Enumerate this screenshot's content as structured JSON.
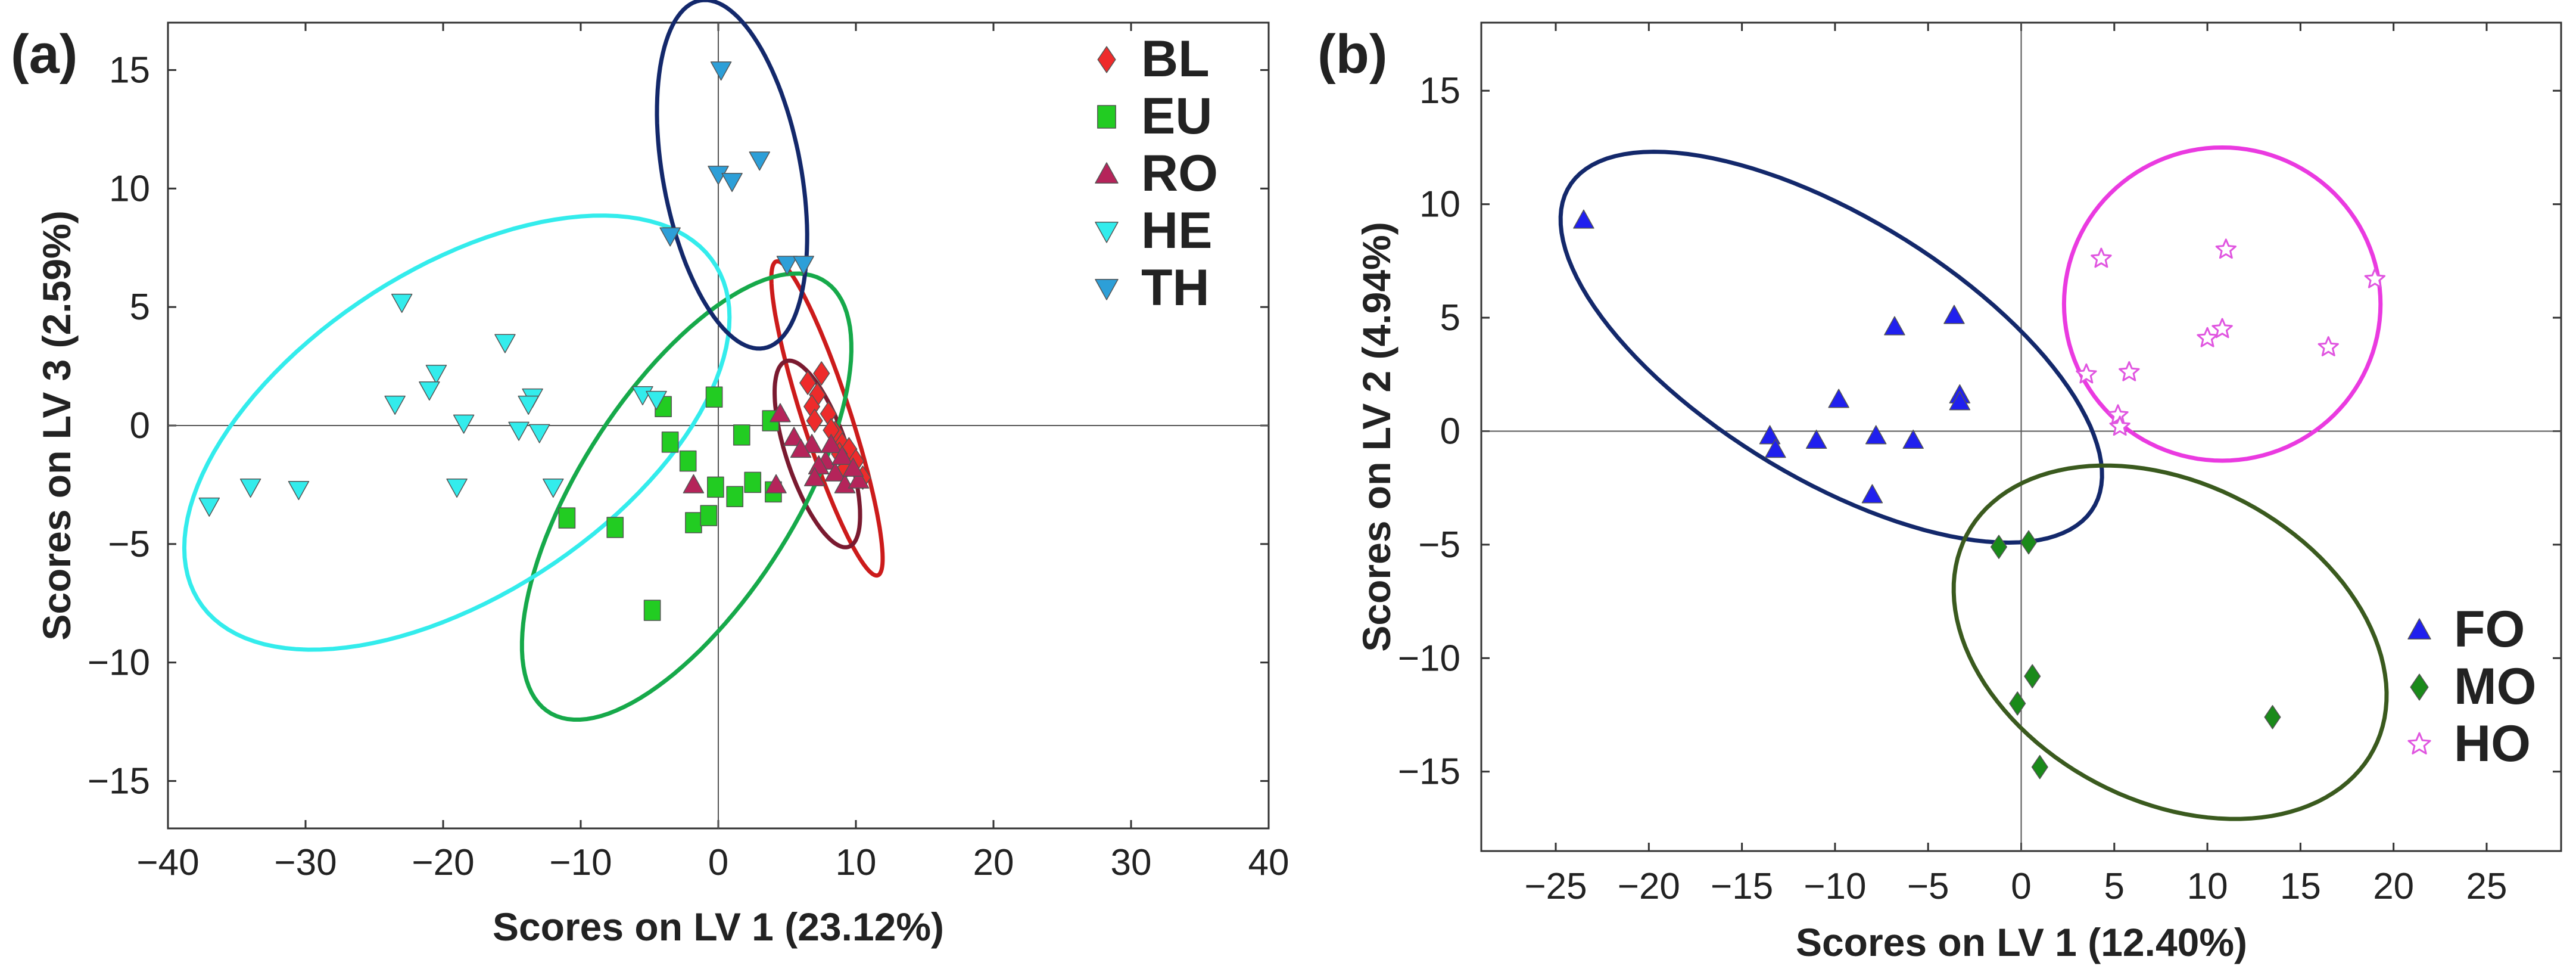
{
  "chart_data": [
    {
      "type": "scatter",
      "panel_label": "(a)",
      "xlabel": "Scores on LV 1 (23.12%)",
      "ylabel": "Scores on LV 3 (2.59%)",
      "xlim": [
        -40,
        40
      ],
      "ylim": [
        -17,
        17
      ],
      "xticks": [
        -40,
        -30,
        -20,
        -10,
        0,
        10,
        20,
        30,
        40
      ],
      "yticks": [
        -15,
        -10,
        -5,
        0,
        5,
        10,
        15
      ],
      "xtick_labels": [
        "−40",
        "−30",
        "−20",
        "−10",
        "0",
        "10",
        "20",
        "30",
        "40"
      ],
      "ytick_labels": [
        "−15",
        "−10",
        "−5",
        "0",
        "5",
        "10",
        "15"
      ],
      "grid": false,
      "legend_position": "top-right",
      "series": [
        {
          "name": "BL",
          "marker": "diamond",
          "color": "#ee2b2b",
          "points": [
            [
              6.5,
              1.8
            ],
            [
              7.5,
              2.2
            ],
            [
              7.2,
              1.3
            ],
            [
              6.8,
              0.8
            ],
            [
              8.0,
              0.5
            ],
            [
              7.0,
              0.2
            ],
            [
              8.5,
              -0.3
            ],
            [
              9.0,
              -0.8
            ],
            [
              9.5,
              -1.0
            ],
            [
              8.2,
              -0.2
            ],
            [
              10.0,
              -1.5
            ],
            [
              9.2,
              -1.8
            ],
            [
              10.5,
              -2.2
            ],
            [
              8.8,
              -1.2
            ]
          ]
        },
        {
          "name": "EU",
          "marker": "square",
          "color": "#22cc22",
          "points": [
            [
              -0.3,
              1.2
            ],
            [
              -4.0,
              0.8
            ],
            [
              -3.5,
              -0.7
            ],
            [
              -2.2,
              -1.5
            ],
            [
              -1.8,
              -4.1
            ],
            [
              -0.7,
              -3.8
            ],
            [
              -0.2,
              -2.6
            ],
            [
              1.2,
              -3.0
            ],
            [
              2.5,
              -2.4
            ],
            [
              4.0,
              -2.8
            ],
            [
              1.7,
              -0.4
            ],
            [
              3.8,
              0.2
            ],
            [
              -7.5,
              -4.3
            ],
            [
              -11.0,
              -3.9
            ],
            [
              -4.8,
              -7.8
            ]
          ]
        },
        {
          "name": "RO",
          "marker": "triangle-up",
          "color": "#b5245a",
          "points": [
            [
              -1.8,
              -2.5
            ],
            [
              4.5,
              0.5
            ],
            [
              5.5,
              -0.5
            ],
            [
              6.8,
              -0.8
            ],
            [
              7.8,
              -1.5
            ],
            [
              8.5,
              -2.0
            ],
            [
              9.2,
              -2.5
            ],
            [
              10.2,
              -2.3
            ],
            [
              6.0,
              -1.0
            ],
            [
              7.3,
              -1.7
            ],
            [
              8.2,
              -0.8
            ],
            [
              9.0,
              -1.3
            ],
            [
              7.0,
              -2.2
            ],
            [
              4.2,
              -2.5
            ],
            [
              9.8,
              -1.8
            ]
          ]
        },
        {
          "name": "HE",
          "marker": "triangle-down",
          "color": "#33ecec",
          "points": [
            [
              -37.0,
              -3.4
            ],
            [
              -34.0,
              -2.6
            ],
            [
              -30.5,
              -2.7
            ],
            [
              -23.5,
              0.9
            ],
            [
              -23.0,
              5.2
            ],
            [
              -20.5,
              2.2
            ],
            [
              -21.0,
              1.5
            ],
            [
              -18.5,
              0.1
            ],
            [
              -19.0,
              -2.6
            ],
            [
              -15.5,
              3.5
            ],
            [
              -14.5,
              -0.2
            ],
            [
              -13.5,
              1.2
            ],
            [
              -13.8,
              0.9
            ],
            [
              -13.0,
              -0.3
            ],
            [
              -12.0,
              -2.6
            ],
            [
              -5.5,
              1.3
            ],
            [
              -4.5,
              1.1
            ]
          ]
        },
        {
          "name": "TH",
          "marker": "triangle-down",
          "color": "#2d9fd8",
          "points": [
            [
              0.2,
              15.0
            ],
            [
              0.0,
              10.6
            ],
            [
              1.0,
              10.3
            ],
            [
              3.0,
              11.2
            ],
            [
              -3.5,
              8.0
            ],
            [
              5.0,
              6.8
            ],
            [
              6.2,
              6.8
            ]
          ]
        }
      ],
      "ellipses": [
        {
          "group": "BL",
          "color": "#cc1b1b",
          "center": [
            7.9,
            0.3
          ],
          "semi_axes": [
            7.6,
            1.6
          ],
          "angle_deg": -60
        },
        {
          "group": "RO",
          "color": "#7a1a30",
          "center": [
            7.2,
            -1.2
          ],
          "semi_axes": [
            4.6,
            2.0
          ],
          "angle_deg": -55
        },
        {
          "group": "EU",
          "color": "#16a94a",
          "center": [
            -2.3,
            -3.0
          ],
          "semi_axes": [
            14.0,
            6.0
          ],
          "angle_deg": 35
        },
        {
          "group": "HE",
          "color": "#33ecec",
          "center": [
            -19.0,
            -0.3
          ],
          "semi_axes": [
            20.5,
            7.5
          ],
          "angle_deg": 16
        },
        {
          "group": "TH",
          "color": "#13286b",
          "center": [
            1.0,
            10.6
          ],
          "semi_axes": [
            7.8,
            4.8
          ],
          "angle_deg": -65
        }
      ]
    },
    {
      "type": "scatter",
      "panel_label": "(b)",
      "xlabel": "Scores on LV 1 (12.40%)",
      "ylabel": "Scores on LV 2 (4.94%)",
      "xlim": [
        -29,
        29
      ],
      "ylim": [
        -18.5,
        18
      ],
      "xticks": [
        -25,
        -20,
        -15,
        -10,
        -5,
        0,
        5,
        10,
        15,
        20,
        25
      ],
      "yticks": [
        -15,
        -10,
        -5,
        0,
        5,
        10,
        15
      ],
      "xtick_labels": [
        "−25",
        "−20",
        "−15",
        "−10",
        "−5",
        "0",
        "5",
        "10",
        "15",
        "20",
        "25"
      ],
      "ytick_labels": [
        "−15",
        "−10",
        "−5",
        "0",
        "5",
        "10",
        "15"
      ],
      "grid": false,
      "legend_position": "bottom-right",
      "series": [
        {
          "name": "FO",
          "marker": "triangle-up",
          "color": "#2020ee",
          "points": [
            [
              -23.5,
              9.3
            ],
            [
              -13.5,
              -0.2
            ],
            [
              -13.2,
              -0.8
            ],
            [
              -11.0,
              -0.4
            ],
            [
              -9.8,
              1.4
            ],
            [
              -7.8,
              -0.2
            ],
            [
              -8.0,
              -2.8
            ],
            [
              -6.8,
              4.6
            ],
            [
              -5.8,
              -0.4
            ],
            [
              -3.6,
              5.1
            ],
            [
              -3.3,
              1.6
            ],
            [
              -3.3,
              1.3
            ]
          ]
        },
        {
          "name": "MO",
          "marker": "diamond",
          "color": "#1a8a1a",
          "points": [
            [
              -1.2,
              -5.1
            ],
            [
              0.4,
              -4.9
            ],
            [
              0.6,
              -10.8
            ],
            [
              -0.2,
              -12.0
            ],
            [
              1.0,
              -14.8
            ],
            [
              13.5,
              -12.6
            ]
          ]
        },
        {
          "name": "HO",
          "marker": "star",
          "color": "#e055e0",
          "points": [
            [
              4.3,
              7.6
            ],
            [
              11.0,
              8.0
            ],
            [
              19.0,
              6.7
            ],
            [
              10.0,
              4.1
            ],
            [
              10.8,
              4.5
            ],
            [
              16.5,
              3.7
            ],
            [
              3.5,
              2.5
            ],
            [
              5.8,
              2.6
            ],
            [
              5.2,
              0.7
            ],
            [
              5.3,
              0.2
            ]
          ]
        }
      ],
      "ellipses": [
        {
          "group": "FO",
          "color": "#13286b",
          "center": [
            -10.2,
            3.7
          ],
          "semi_axes": [
            15.8,
            6.0
          ],
          "angle_deg": -25
        },
        {
          "group": "MO",
          "color": "#3a5a1e",
          "center": [
            8.0,
            -9.3
          ],
          "semi_axes": [
            12.0,
            7.2
          ],
          "angle_deg": -18
        },
        {
          "group": "HO",
          "color": "#ea3ae0",
          "center": [
            10.8,
            5.6
          ],
          "semi_axes": [
            8.5,
            6.9
          ],
          "angle_deg": 0
        }
      ]
    }
  ]
}
